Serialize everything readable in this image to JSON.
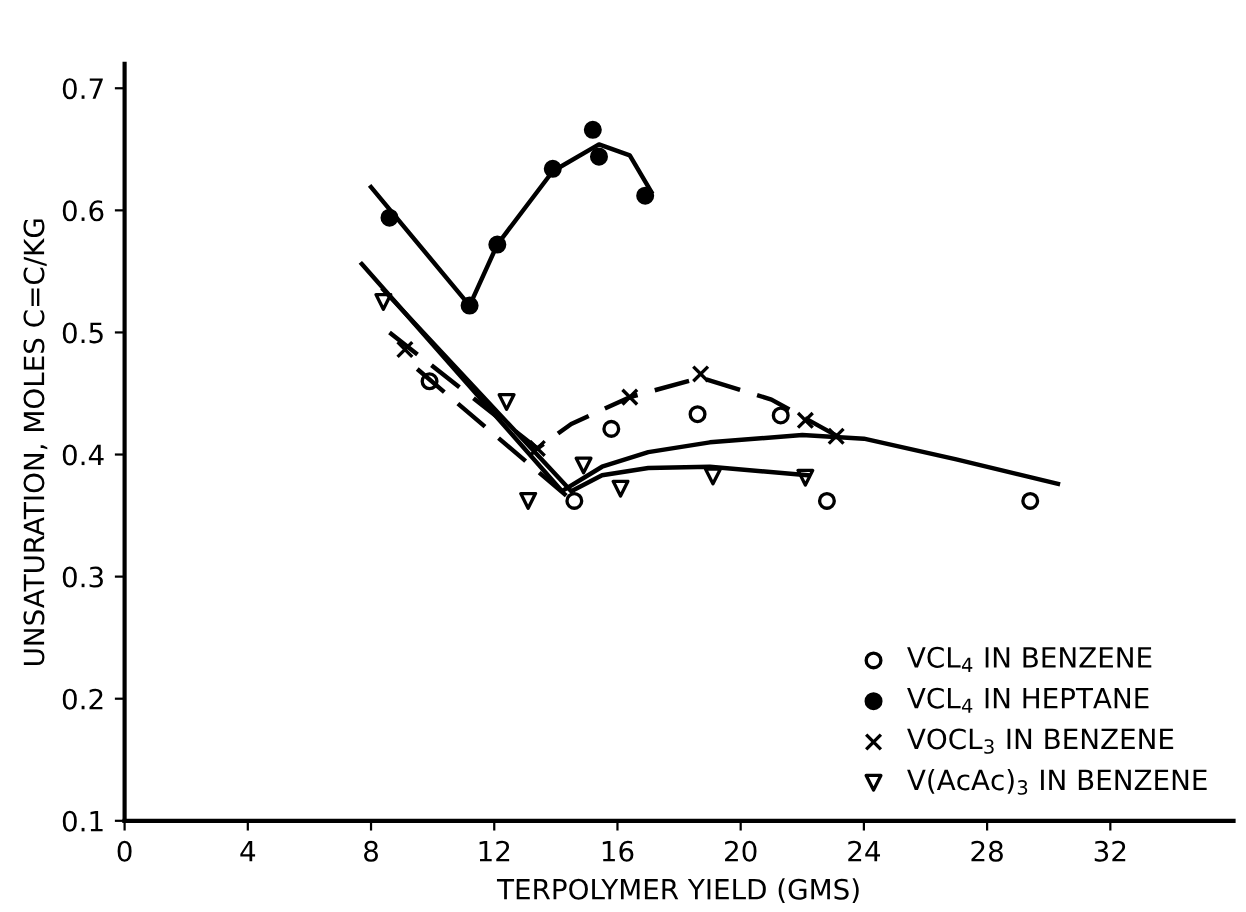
{
  "chart_data": {
    "type": "scatter",
    "xlabel": "TERPOLYMER YIELD (GMS)",
    "ylabel": "UNSATURATION, MOLES C=C/KG",
    "xlim": [
      0,
      36
    ],
    "xticks": [
      0,
      4,
      8,
      12,
      16,
      20,
      24,
      28,
      32
    ],
    "ylim": [
      0.1,
      0.72
    ],
    "yticks": [
      0.1,
      0.2,
      0.3,
      0.4,
      0.5,
      0.6,
      0.7
    ],
    "grid": false,
    "legend": "bottom right",
    "series": [
      {
        "name": "VCL$_{4}$ IN BENZENE",
        "marker": "circle",
        "color": "#000000",
        "x": [
          9.9,
          14.6,
          15.8,
          18.6,
          21.3,
          22.8,
          29.4
        ],
        "values": [
          0.46,
          0.362,
          0.421,
          0.433,
          0.432,
          0.362,
          0.362
        ]
      },
      {
        "name": "VCL$_{4}$ IN HEPTANE",
        "marker": "circle",
        "color": "#000000",
        "x": [
          8.6,
          11.2,
          12.1,
          13.9,
          15.2,
          15.4,
          16.9
        ],
        "values": [
          0.594,
          0.522,
          0.572,
          0.634,
          0.666,
          0.644,
          0.612
        ]
      },
      {
        "name": "VOCL$_{3}$ IN BENZENE",
        "marker": "cross",
        "color": "#000000",
        "x": [
          9.1,
          13.4,
          16.4,
          18.7,
          22.1,
          23.1
        ],
        "values": [
          0.486,
          0.405,
          0.447,
          0.466,
          0.428,
          0.415
        ]
      },
      {
        "name": "V(AcAc)$_{3}$ IN BENZENE",
        "marker": "triangle",
        "color": "#000000",
        "x": [
          8.4,
          12.4,
          13.1,
          14.9,
          16.1,
          19.1,
          22.1
        ],
        "values": [
          0.525,
          0.443,
          0.362,
          0.391,
          0.372,
          0.382,
          0.381
        ]
      },
      {
        "type": "line",
        "marker": "none",
        "line_style": "solid",
        "color": "#000000",
        "x": [
          8.0,
          11.2,
          12.1,
          13.9,
          15.4,
          16.4,
          17.1
        ],
        "values": [
          0.619,
          0.522,
          0.572,
          0.632,
          0.654,
          0.645,
          0.615
        ]
      },
      {
        "type": "line",
        "marker": "none",
        "line_style": "solid",
        "color": "#000000",
        "x": [
          7.7,
          14.2,
          15.5,
          17,
          19,
          22,
          24,
          27,
          30.3
        ],
        "values": [
          0.556,
          0.37,
          0.39,
          0.402,
          0.41,
          0.416,
          0.413,
          0.396,
          0.376
        ]
      },
      {
        "type": "line",
        "marker": "none",
        "line_style": "solid",
        "color": "#000000",
        "x": [
          8.4,
          14.5,
          15.5,
          17,
          19,
          22.2
        ],
        "values": [
          0.535,
          0.37,
          0.383,
          0.389,
          0.39,
          0.383
        ]
      },
      {
        "type": "line",
        "marker": "none",
        "line_style": "dashed",
        "color": "#000000",
        "x": [
          8.6,
          13.4,
          14.5,
          16.4,
          18.7,
          21,
          23.5
        ],
        "values": [
          0.5,
          0.405,
          0.425,
          0.447,
          0.463,
          0.445,
          0.41
        ]
      },
      {
        "type": "line",
        "marker": "none",
        "line_style": "dashed",
        "color": "#000000",
        "x": [
          9.5,
          14.4
        ],
        "values": [
          0.47,
          0.365
        ]
      }
    ]
  }
}
